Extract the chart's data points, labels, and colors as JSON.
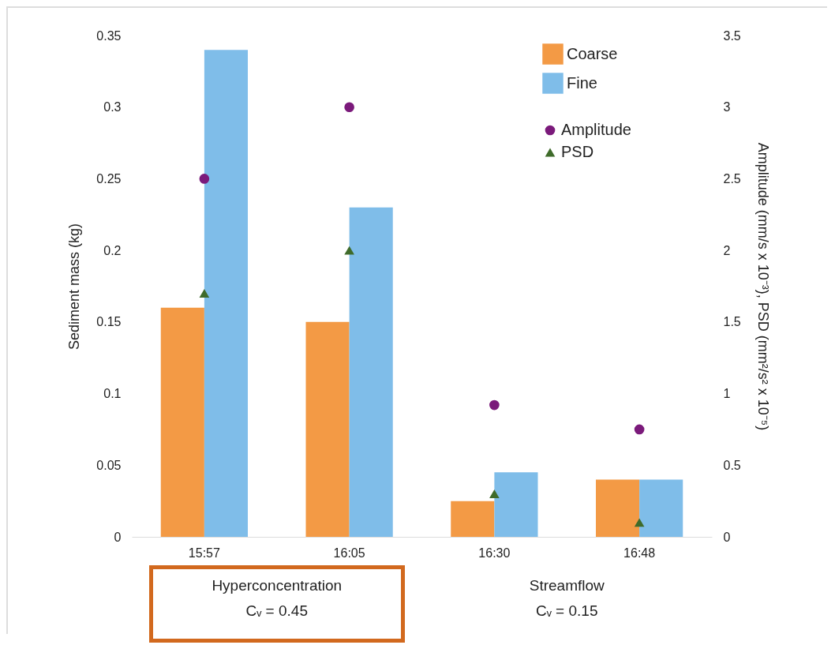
{
  "chart_data": {
    "type": "bar",
    "categories": [
      "15:57",
      "16:05",
      "16:30",
      "16:48"
    ],
    "ylabel": "Sediment mass (kg)",
    "y2label": "Amplitude (mm/s x 10⁻³), PSD (mm²/s² x 10⁻⁵)",
    "ylim": [
      0,
      0.35
    ],
    "yticks": [
      0,
      0.05,
      0.1,
      0.15,
      0.2,
      0.25,
      0.3,
      0.35
    ],
    "y2lim": [
      0,
      3.5
    ],
    "y2ticks": [
      0,
      0.5,
      1,
      1.5,
      2,
      2.5,
      3,
      3.5
    ],
    "legend": "top right",
    "series": [
      {
        "name": "Coarse",
        "color": "#f39a45",
        "values": [
          0.16,
          0.15,
          0.025,
          0.04
        ]
      },
      {
        "name": "Fine",
        "color": "#7fbde9",
        "values": [
          0.34,
          0.23,
          0.045,
          0.04
        ]
      },
      {
        "name": "Amplitude",
        "type": "scatter",
        "marker": "circle",
        "axis": "y2",
        "color": "#7b1a7b",
        "values": [
          2.5,
          3.0,
          0.92,
          0.75
        ]
      },
      {
        "name": "PSD",
        "type": "scatter",
        "marker": "triangle",
        "axis": "y2",
        "color": "#3f6b2a",
        "values": [
          1.7,
          2.0,
          0.3,
          0.1
        ]
      }
    ],
    "annotations": [
      "Hyperconcentration",
      "Cᵥ = 0.45",
      "Streamflow",
      "Cᵥ = 0.15"
    ]
  }
}
